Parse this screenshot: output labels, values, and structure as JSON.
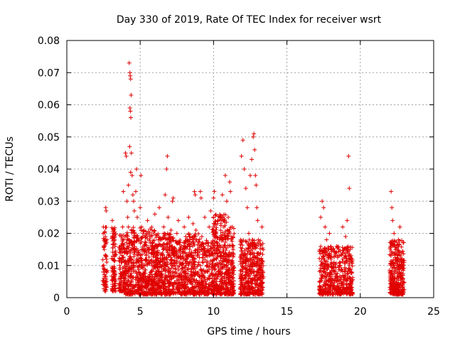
{
  "chart_data": {
    "type": "scatter",
    "title": "Day 330 of 2019, Rate Of TEC Index for receiver wsrt",
    "xlabel": "GPS time / hours",
    "ylabel": "ROTI / TECUs",
    "xlim": [
      0,
      25
    ],
    "ylim": [
      0,
      0.08
    ],
    "x_ticks": [
      0,
      5,
      10,
      15,
      20,
      25
    ],
    "y_ticks": [
      0,
      0.01,
      0.02,
      0.03,
      0.04,
      0.05,
      0.06,
      0.07,
      0.08
    ],
    "x_tick_labels": [
      "0",
      "5",
      "10",
      "15",
      "20",
      "25"
    ],
    "y_tick_labels": [
      "0",
      "0.01",
      "0.02",
      "0.03",
      "0.04",
      "0.05",
      "0.06",
      "0.07",
      "0.08"
    ],
    "grid": true,
    "marker": "+",
    "marker_color": "#e00000",
    "series": [
      {
        "points": [
          [
            2.5,
            0.022
          ],
          [
            2.55,
            0.015
          ],
          [
            2.6,
            0.008
          ],
          [
            2.65,
            0.028
          ],
          [
            2.7,
            0.012
          ],
          [
            2.55,
            0.005
          ],
          [
            2.62,
            0.019
          ],
          [
            2.68,
            0.027
          ],
          [
            3.1,
            0.024
          ],
          [
            3.15,
            0.012
          ],
          [
            3.2,
            0.006
          ],
          [
            3.25,
            0.018
          ],
          [
            3.3,
            0.003
          ],
          [
            3.18,
            0.021
          ],
          [
            3.12,
            0.009
          ],
          [
            3.28,
            0.014
          ],
          [
            3.6,
            0.01
          ],
          [
            3.7,
            0.016
          ],
          [
            3.8,
            0.022
          ],
          [
            3.85,
            0.033
          ],
          [
            3.9,
            0.006
          ],
          [
            3.75,
            0.012
          ],
          [
            3.65,
            0.004
          ],
          [
            4.0,
            0.045
          ],
          [
            4.05,
            0.044
          ],
          [
            4.1,
            0.03
          ],
          [
            4.15,
            0.025
          ],
          [
            4.2,
            0.035
          ],
          [
            4.25,
            0.073
          ],
          [
            4.3,
            0.07
          ],
          [
            4.32,
            0.069
          ],
          [
            4.35,
            0.068
          ],
          [
            4.38,
            0.063
          ],
          [
            4.3,
            0.059
          ],
          [
            4.33,
            0.058
          ],
          [
            4.36,
            0.056
          ],
          [
            4.28,
            0.047
          ],
          [
            4.4,
            0.045
          ],
          [
            4.35,
            0.039
          ],
          [
            4.45,
            0.038
          ],
          [
            4.5,
            0.032
          ],
          [
            4.55,
            0.03
          ],
          [
            4.6,
            0.027
          ],
          [
            4.2,
            0.022
          ],
          [
            4.25,
            0.018
          ],
          [
            4.3,
            0.012
          ],
          [
            4.15,
            0.008
          ],
          [
            4.4,
            0.015
          ],
          [
            4.5,
            0.01
          ],
          [
            4.6,
            0.02
          ],
          [
            4.7,
            0.033
          ],
          [
            4.75,
            0.04
          ],
          [
            4.8,
            0.025
          ],
          [
            4.85,
            0.018
          ],
          [
            4.9,
            0.012
          ],
          [
            5.0,
            0.028
          ],
          [
            5.05,
            0.038
          ],
          [
            5.1,
            0.022
          ],
          [
            5.2,
            0.015
          ],
          [
            5.3,
            0.008
          ],
          [
            5.4,
            0.019
          ],
          [
            5.5,
            0.024
          ],
          [
            5.6,
            0.011
          ],
          [
            5.7,
            0.017
          ],
          [
            5.8,
            0.021
          ],
          [
            5.9,
            0.009
          ],
          [
            6.0,
            0.026
          ],
          [
            6.1,
            0.014
          ],
          [
            6.2,
            0.006
          ],
          [
            6.3,
            0.028
          ],
          [
            6.4,
            0.018
          ],
          [
            6.5,
            0.012
          ],
          [
            6.6,
            0.022
          ],
          [
            6.7,
            0.032
          ],
          [
            6.8,
            0.04
          ],
          [
            6.85,
            0.044
          ],
          [
            6.9,
            0.025
          ],
          [
            7.0,
            0.017
          ],
          [
            7.1,
            0.021
          ],
          [
            7.2,
            0.03
          ],
          [
            7.25,
            0.031
          ],
          [
            7.3,
            0.014
          ],
          [
            7.4,
            0.008
          ],
          [
            7.5,
            0.02
          ],
          [
            7.6,
            0.024
          ],
          [
            7.7,
            0.011
          ],
          [
            7.8,
            0.016
          ],
          [
            8.0,
            0.022
          ],
          [
            8.1,
            0.019
          ],
          [
            8.2,
            0.012
          ],
          [
            8.3,
            0.025
          ],
          [
            8.4,
            0.018
          ],
          [
            8.5,
            0.006
          ],
          [
            8.6,
            0.023
          ],
          [
            8.7,
            0.033
          ],
          [
            8.75,
            0.032
          ],
          [
            8.8,
            0.021
          ],
          [
            8.9,
            0.015
          ],
          [
            9.0,
            0.011
          ],
          [
            9.1,
            0.033
          ],
          [
            9.15,
            0.031
          ],
          [
            9.2,
            0.019
          ],
          [
            9.4,
            0.025
          ],
          [
            9.5,
            0.014
          ],
          [
            9.6,
            0.008
          ],
          [
            9.7,
            0.022
          ],
          [
            9.8,
            0.027
          ],
          [
            9.9,
            0.017
          ],
          [
            10.0,
            0.031
          ],
          [
            10.05,
            0.033
          ],
          [
            10.1,
            0.02
          ],
          [
            10.2,
            0.012
          ],
          [
            10.3,
            0.024
          ],
          [
            10.4,
            0.018
          ],
          [
            10.5,
            0.009
          ],
          [
            10.6,
            0.032
          ],
          [
            10.7,
            0.022
          ],
          [
            10.8,
            0.038
          ],
          [
            10.9,
            0.03
          ],
          [
            11.0,
            0.025
          ],
          [
            11.1,
            0.036
          ],
          [
            11.15,
            0.033
          ],
          [
            11.2,
            0.019
          ],
          [
            11.3,
            0.011
          ],
          [
            11.0,
            0.006
          ],
          [
            10.8,
            0.004
          ],
          [
            11.9,
            0.044
          ],
          [
            12.0,
            0.049
          ],
          [
            12.1,
            0.04
          ],
          [
            12.2,
            0.034
          ],
          [
            12.3,
            0.028
          ],
          [
            12.4,
            0.02
          ],
          [
            12.5,
            0.038
          ],
          [
            12.6,
            0.043
          ],
          [
            12.7,
            0.05
          ],
          [
            12.75,
            0.051
          ],
          [
            12.8,
            0.046
          ],
          [
            12.85,
            0.038
          ],
          [
            12.9,
            0.035
          ],
          [
            12.95,
            0.028
          ],
          [
            13.0,
            0.024
          ],
          [
            13.05,
            0.018
          ],
          [
            13.1,
            0.012
          ],
          [
            13.2,
            0.007
          ],
          [
            13.3,
            0.022
          ],
          [
            12.2,
            0.013
          ],
          [
            12.0,
            0.008
          ],
          [
            17.3,
            0.025
          ],
          [
            17.4,
            0.03
          ],
          [
            17.5,
            0.028
          ],
          [
            17.6,
            0.022
          ],
          [
            17.7,
            0.018
          ],
          [
            17.8,
            0.015
          ],
          [
            17.9,
            0.02
          ],
          [
            18.0,
            0.012
          ],
          [
            18.2,
            0.008
          ],
          [
            18.4,
            0.016
          ],
          [
            18.6,
            0.01
          ],
          [
            18.8,
            0.022
          ],
          [
            19.0,
            0.019
          ],
          [
            19.1,
            0.024
          ],
          [
            19.2,
            0.044
          ],
          [
            19.25,
            0.034
          ],
          [
            19.3,
            0.015
          ],
          [
            19.4,
            0.008
          ],
          [
            17.5,
            0.004
          ],
          [
            18.0,
            0.003
          ],
          [
            22.1,
            0.033
          ],
          [
            22.15,
            0.028
          ],
          [
            22.2,
            0.024
          ],
          [
            22.3,
            0.02
          ],
          [
            22.4,
            0.015
          ],
          [
            22.5,
            0.01
          ],
          [
            22.6,
            0.018
          ],
          [
            22.7,
            0.022
          ],
          [
            22.8,
            0.012
          ],
          [
            22.9,
            0.006
          ],
          [
            22.3,
            0.004
          ],
          [
            22.6,
            0.003
          ]
        ]
      }
    ],
    "dense_bands": [
      {
        "x": [
          2.45,
          2.75
        ],
        "y": [
          0.002,
          0.022
        ],
        "count": 60
      },
      {
        "x": [
          3.05,
          3.35
        ],
        "y": [
          0.002,
          0.022
        ],
        "count": 90
      },
      {
        "x": [
          3.55,
          4.0
        ],
        "y": [
          0.002,
          0.02
        ],
        "count": 120
      },
      {
        "x": [
          4.0,
          6.0
        ],
        "y": [
          0.001,
          0.022
        ],
        "count": 520
      },
      {
        "x": [
          6.0,
          7.3
        ],
        "y": [
          0.001,
          0.02
        ],
        "count": 360
      },
      {
        "x": [
          7.3,
          8.1
        ],
        "y": [
          0.001,
          0.018
        ],
        "count": 180
      },
      {
        "x": [
          8.1,
          9.1
        ],
        "y": [
          0.001,
          0.02
        ],
        "count": 220
      },
      {
        "x": [
          9.1,
          9.9
        ],
        "y": [
          0.001,
          0.018
        ],
        "count": 150
      },
      {
        "x": [
          9.9,
          10.9
        ],
        "y": [
          0.001,
          0.026
        ],
        "count": 320
      },
      {
        "x": [
          10.9,
          11.4
        ],
        "y": [
          0.001,
          0.022
        ],
        "count": 160
      },
      {
        "x": [
          11.8,
          13.4
        ],
        "y": [
          0.001,
          0.018
        ],
        "count": 420
      },
      {
        "x": [
          17.2,
          19.5
        ],
        "y": [
          0.001,
          0.016
        ],
        "count": 480
      },
      {
        "x": [
          22.0,
          23.0
        ],
        "y": [
          0.001,
          0.018
        ],
        "count": 300
      }
    ]
  }
}
